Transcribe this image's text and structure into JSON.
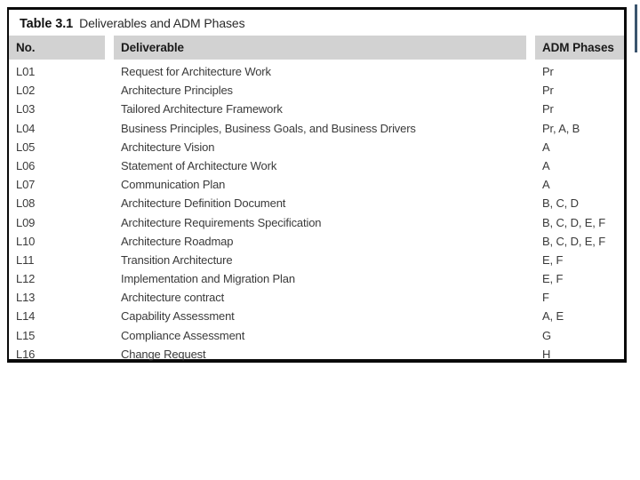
{
  "page": {
    "background": "#ffffff"
  },
  "table": {
    "title_bold": "Table 3.1",
    "title_rest": "Deliverables and ADM Phases",
    "columns": [
      "No.",
      "Deliverable",
      "ADM Phases"
    ],
    "rows": [
      {
        "no": "L01",
        "deliverable": "Request for Architecture Work",
        "phases": "Pr"
      },
      {
        "no": "L02",
        "deliverable": "Architecture Principles",
        "phases": "Pr"
      },
      {
        "no": "L03",
        "deliverable": "Tailored Architecture Framework",
        "phases": "Pr"
      },
      {
        "no": "L04",
        "deliverable": "Business Principles, Business Goals, and Business Drivers",
        "phases": "Pr, A, B"
      },
      {
        "no": "L05",
        "deliverable": "Architecture Vision",
        "phases": "A"
      },
      {
        "no": "L06",
        "deliverable": "Statement of Architecture Work",
        "phases": "A"
      },
      {
        "no": "L07",
        "deliverable": "Communication Plan",
        "phases": "A"
      },
      {
        "no": "L08",
        "deliverable": "Architecture Definition Document",
        "phases": "B, C, D"
      },
      {
        "no": "L09",
        "deliverable": "Architecture Requirements Specification",
        "phases": "B, C, D, E, F"
      },
      {
        "no": "L10",
        "deliverable": "Architecture Roadmap",
        "phases": "B, C, D, E, F"
      },
      {
        "no": "L11",
        "deliverable": "Transition Architecture",
        "phases": "E, F"
      },
      {
        "no": "L12",
        "deliverable": "Implementation and Migration Plan",
        "phases": "E, F"
      },
      {
        "no": "L13",
        "deliverable": "Architecture contract",
        "phases": "F"
      },
      {
        "no": "L14",
        "deliverable": "Capability Assessment",
        "phases": "A, E"
      },
      {
        "no": "L15",
        "deliverable": "Compliance Assessment",
        "phases": "G"
      },
      {
        "no": "L16",
        "deliverable": "Change Request",
        "phases": "H"
      }
    ],
    "colors": {
      "header_bg": "#d2d2d2",
      "border": "#0a0a0a",
      "text": "#3a3a3a",
      "title": "#111111",
      "edge_fragment": "#3b556e"
    }
  }
}
